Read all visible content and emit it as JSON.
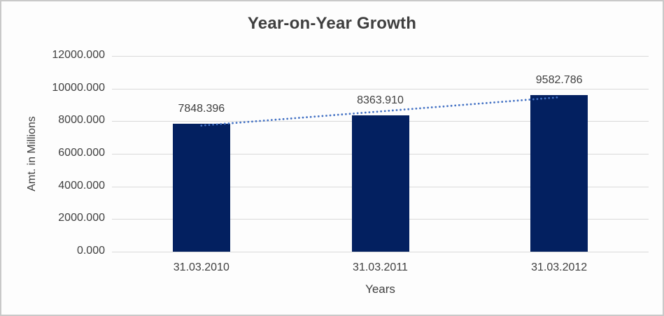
{
  "chart_data": {
    "type": "bar",
    "title": "Year-on-Year Growth",
    "xlabel": "Years",
    "ylabel": "Amt. in Millions",
    "categories": [
      "31.03.2010",
      "31.03.2011",
      "31.03.2012"
    ],
    "values": [
      7848.396,
      8363.91,
      9582.786
    ],
    "data_labels": [
      "7848.396",
      "8363.910",
      "9582.786"
    ],
    "ylim": [
      0,
      12000
    ],
    "yticks": [
      0,
      2000,
      4000,
      6000,
      8000,
      10000,
      12000
    ],
    "ytick_labels": [
      "0.000",
      "2000.000",
      "4000.000",
      "6000.000",
      "8000.000",
      "10000.000",
      "12000.000"
    ],
    "grid": true,
    "legend": "none",
    "trendline": {
      "type": "linear",
      "style": "dotted"
    },
    "colors": {
      "bar": "#032060",
      "trendline": "#4472c4",
      "gridline": "#d9d9d9",
      "text": "#404040",
      "title": "#3f3f3f",
      "frame_border": "#c9c9c9",
      "background": "#fdfdfd"
    }
  }
}
